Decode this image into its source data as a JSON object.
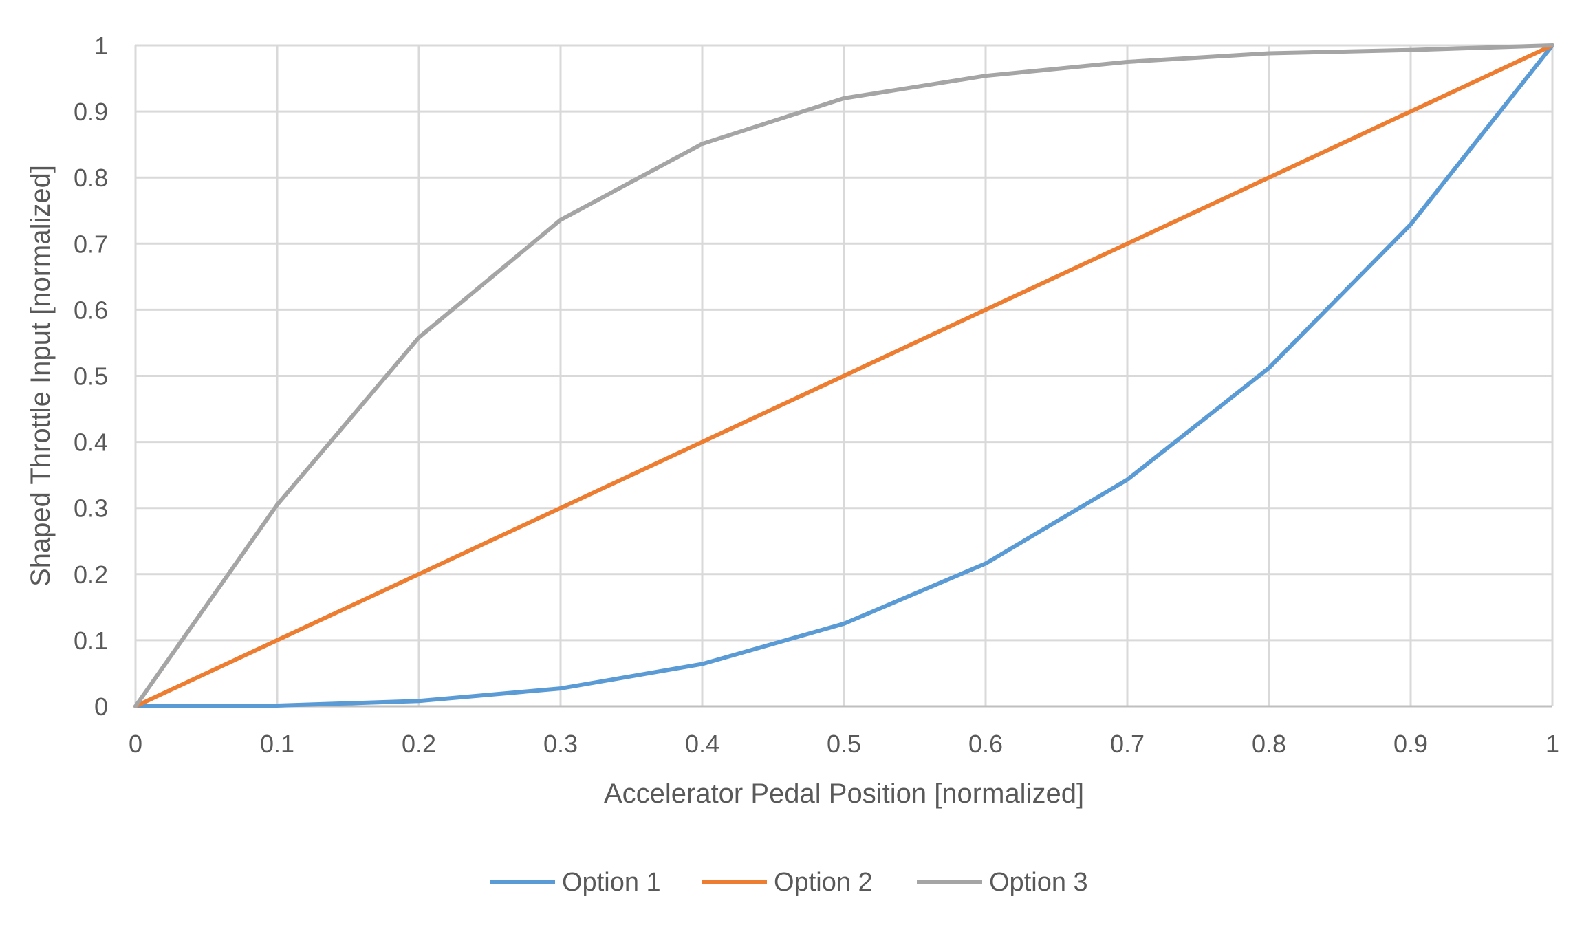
{
  "chart_data": {
    "type": "line",
    "title": "",
    "xlabel": "Accelerator Pedal Position [normalized]",
    "ylabel": "Shaped Throttle Input [normalized]",
    "xlim": [
      0,
      1
    ],
    "ylim": [
      0,
      1
    ],
    "grid": true,
    "legend_position": "bottom",
    "x_ticks": [
      "0",
      "0.1",
      "0.2",
      "0.3",
      "0.4",
      "0.5",
      "0.6",
      "0.7",
      "0.8",
      "0.9",
      "1"
    ],
    "y_ticks": [
      "0",
      "0.1",
      "0.2",
      "0.3",
      "0.4",
      "0.5",
      "0.6",
      "0.7",
      "0.8",
      "0.9",
      "1"
    ],
    "x": [
      0,
      0.1,
      0.2,
      0.3,
      0.4,
      0.5,
      0.6,
      0.7,
      0.8,
      0.9,
      1
    ],
    "series": [
      {
        "name": "Option 1",
        "color": "#5B9BD5",
        "values": [
          0,
          0.001,
          0.008,
          0.027,
          0.064,
          0.125,
          0.216,
          0.343,
          0.512,
          0.729,
          1
        ]
      },
      {
        "name": "Option 2",
        "color": "#ED7D31",
        "values": [
          0,
          0.1,
          0.2,
          0.3,
          0.4,
          0.5,
          0.6,
          0.7,
          0.8,
          0.9,
          1
        ]
      },
      {
        "name": "Option 3",
        "color": "#A5A5A5",
        "values": [
          0,
          0.305,
          0.558,
          0.736,
          0.851,
          0.92,
          0.954,
          0.975,
          0.988,
          0.993,
          1
        ]
      }
    ]
  }
}
